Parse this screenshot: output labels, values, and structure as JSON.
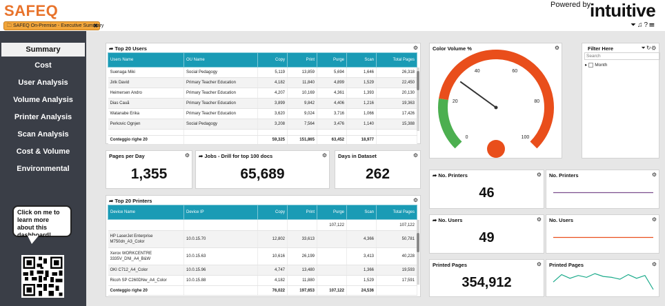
{
  "header": {
    "brand": "SAFEQ",
    "tab_label": "SAFEQ On-Premise - Executive Summary",
    "tab_close": "✖",
    "powered_by": "Powered by",
    "partner": "intuitive",
    "icons": [
      "filter-icon",
      "bell-icon",
      "help-icon",
      "menu-icon"
    ]
  },
  "sidebar": {
    "items": [
      {
        "label": "Summary",
        "active": true
      },
      {
        "label": "Cost"
      },
      {
        "label": "User Analysis"
      },
      {
        "label": "Volume Analysis"
      },
      {
        "label": "Printer Analysis"
      },
      {
        "label": "Scan Analysis"
      },
      {
        "label": "Cost & Volume"
      },
      {
        "label": "Environmental"
      }
    ],
    "bubble_text": "Click on me to learn more about this dashboard!"
  },
  "users_table": {
    "title": "Top 20 Users",
    "columns": [
      "Users Name",
      "OU Name",
      "Copy",
      "Print",
      "Purge",
      "Scan",
      "Total Pages"
    ],
    "rows": [
      [
        "Suenaga Miki",
        "Social Pedagogy",
        "5,119",
        "13,859",
        "5,694",
        "1,646",
        "26,318"
      ],
      [
        "Jirik David",
        "Primary Teacher Education",
        "4,182",
        "11,840",
        "4,899",
        "1,529",
        "22,450"
      ],
      [
        "Heimersen Andro",
        "Primary Teacher Education",
        "4,207",
        "10,169",
        "4,361",
        "1,393",
        "20,130"
      ],
      [
        "Dias Cauã",
        "Primary Teacher Education",
        "3,899",
        "9,842",
        "4,406",
        "1,216",
        "19,363"
      ],
      [
        "Watanabe Erika",
        "Primary Teacher Education",
        "3,620",
        "9,024",
        "3,716",
        "1,066",
        "17,426"
      ],
      [
        "Perkovic Ognjen",
        "Social Pedagogy",
        "3,208",
        "7,564",
        "3,476",
        "1,140",
        "15,388"
      ]
    ],
    "footer": [
      "Conteggio righe 20",
      "",
      "59,325",
      "151,865",
      "63,452",
      "18,977",
      ""
    ]
  },
  "kpis": {
    "pages_per_day": {
      "title": "Pages per Day",
      "value": "1,355"
    },
    "jobs": {
      "title": "Jobs - Drill for top 100 docs",
      "value": "65,689"
    },
    "days": {
      "title": "Days in Dataset",
      "value": "262"
    }
  },
  "printers_table": {
    "title": "Top 20 Printers",
    "columns": [
      "Device Name",
      "Device IP",
      "Copy",
      "Print",
      "Purge",
      "Scan",
      "Total Pages"
    ],
    "total_row": [
      "",
      "",
      "",
      "",
      "107,122",
      "",
      "107,122"
    ],
    "rows": [
      [
        "HP LaserJet Enterprise M750dn_A3_Color",
        "10.0.15.70",
        "12,802",
        "33,613",
        "",
        "4,366",
        "50,781"
      ],
      [
        "Xerox WORKCENTRE 3335V_DNI_A4_B&W",
        "10.0.15.63",
        "10,616",
        "26,199",
        "",
        "3,413",
        "40,228"
      ],
      [
        "OKI C712_A4_Color",
        "10.0.15.96",
        "4,747",
        "13,480",
        "",
        "1,366",
        "19,593"
      ],
      [
        "Ricoh SP C260DNw_A4_Color",
        "10.0.15.88",
        "4,182",
        "11,880",
        "",
        "1,529",
        "17,591"
      ]
    ],
    "footer": [
      "Conteggio righe 20",
      "",
      "76,022",
      "197,653",
      "107,122",
      "24,536",
      ""
    ]
  },
  "gauge": {
    "title": "Color Volume %",
    "ticks": [
      "0",
      "20",
      "40",
      "60",
      "80",
      "100"
    ],
    "value": 30,
    "colors": {
      "low": "#4caf50",
      "high": "#e94e1b",
      "needle": "#333333",
      "hub": "#e94e1b"
    }
  },
  "filter": {
    "title": "Filter Here",
    "search_placeholder": "Search",
    "items": [
      "Month"
    ]
  },
  "right_kpis": {
    "printers": {
      "title": "No. Printers",
      "value": "46"
    },
    "printers_trend": {
      "title": "No. Printers",
      "color": "#7b4d8c",
      "values": [
        46,
        46,
        46,
        46,
        46,
        46,
        46,
        46,
        46,
        46
      ]
    },
    "users": {
      "title": "No. Users",
      "value": "49"
    },
    "users_trend": {
      "title": "No. Users",
      "color": "#e94e1b",
      "values": [
        49,
        49,
        49,
        49,
        49,
        49,
        49,
        49,
        49,
        49
      ]
    },
    "pages": {
      "title": "Printed Pages",
      "value": "354,912"
    },
    "pages_trend": {
      "title": "Printed Pages",
      "color": "#1aaa8a",
      "values": [
        33,
        41,
        37,
        40,
        38,
        42,
        39,
        38,
        36,
        41,
        37,
        40,
        25
      ]
    }
  }
}
